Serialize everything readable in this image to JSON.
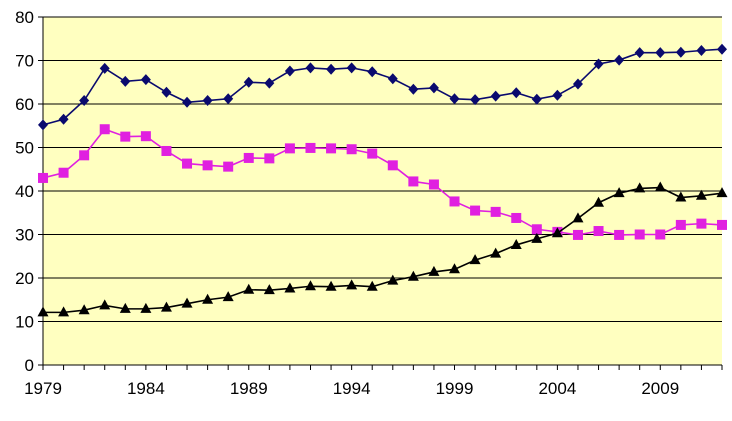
{
  "chart_data": {
    "type": "line",
    "x": [
      1979,
      1980,
      1981,
      1982,
      1983,
      1984,
      1985,
      1986,
      1987,
      1988,
      1989,
      1990,
      1991,
      1992,
      1993,
      1994,
      1995,
      1996,
      1997,
      1998,
      1999,
      2000,
      2001,
      2002,
      2003,
      2004,
      2005,
      2006,
      2007,
      2008,
      2009,
      2010,
      2011,
      2012
    ],
    "xticks": [
      "1979",
      "1984",
      "1989",
      "1994",
      "1999",
      "2004",
      "2009"
    ],
    "xtick_values": [
      1979,
      1984,
      1989,
      1994,
      1999,
      2004,
      2009
    ],
    "yticks": [
      "0",
      "10",
      "20",
      "30",
      "40",
      "50",
      "60",
      "70",
      "80"
    ],
    "ylim": [
      0,
      80
    ],
    "xlim": [
      1979,
      2012
    ],
    "title": "",
    "xlabel": "",
    "ylabel": "",
    "grid": "horizontal",
    "legend": "none",
    "colors": {
      "background": "#FFFFC0",
      "gridline": "#000000"
    },
    "series": [
      {
        "color": "#0A0A6E",
        "marker": "diamond",
        "values": [
          55.2,
          56.5,
          60.8,
          68.2,
          65.2,
          65.6,
          62.7,
          60.4,
          60.8,
          61.2,
          65.0,
          64.8,
          67.6,
          68.3,
          68.0,
          68.3,
          67.4,
          65.8,
          63.4,
          63.7,
          61.2,
          61.0,
          61.8,
          62.6,
          61.1,
          62.0,
          64.6,
          69.2,
          70.1,
          71.8,
          71.8,
          71.9,
          72.3,
          72.6
        ]
      },
      {
        "color": "#E020E0",
        "marker": "square",
        "values": [
          43.0,
          44.2,
          48.2,
          54.2,
          52.5,
          52.6,
          49.2,
          46.3,
          45.9,
          45.6,
          47.6,
          47.5,
          49.8,
          49.9,
          49.8,
          49.6,
          48.6,
          45.9,
          42.2,
          41.5,
          37.6,
          35.5,
          35.2,
          33.8,
          31.2,
          30.6,
          29.9,
          30.8,
          29.9,
          30.0,
          30.0,
          32.2,
          32.5,
          32.2
        ]
      },
      {
        "color": "#000000",
        "marker": "triangle",
        "values": [
          12.1,
          12.1,
          12.6,
          13.7,
          12.9,
          12.9,
          13.2,
          14.1,
          15.0,
          15.6,
          17.3,
          17.2,
          17.6,
          18.1,
          18.0,
          18.3,
          18.0,
          19.4,
          20.3,
          21.4,
          22.0,
          24.1,
          25.6,
          27.6,
          29.0,
          30.3,
          33.7,
          37.3,
          39.5,
          40.6,
          40.8,
          38.5,
          38.9,
          39.5
        ]
      }
    ]
  }
}
